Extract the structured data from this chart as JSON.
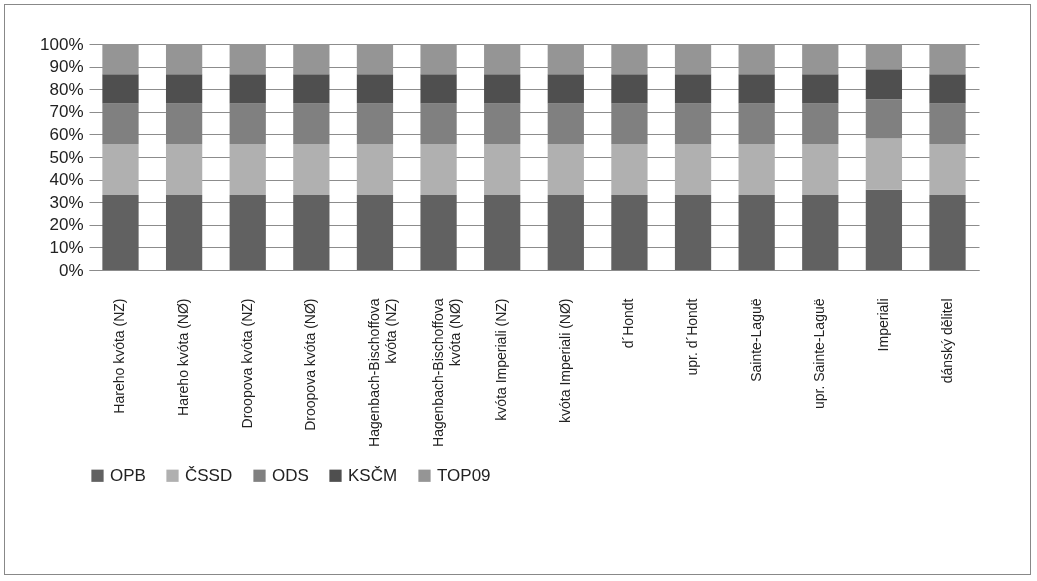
{
  "chart_data": {
    "type": "bar",
    "stacked": true,
    "categories": [
      "Hareho kvóta (NZ)",
      "Hareho kvóta (NØ)",
      "Droopova kvóta (NZ)",
      "Droopova kvóta (NØ)",
      "Hagenbach-Bischoffova kvóta (NZ)",
      "Hagenbach-Bischoffova kvóta (NØ)",
      "kvóta Imperiali (NZ)",
      "kvóta Imperiali (NØ)",
      "d´Hondt",
      "upr. d´Hondt",
      "Sainte-Laguë",
      "upr. Sainte-Laguë",
      "Imperiali",
      "dánský dělitel"
    ],
    "series": [
      {
        "name": "OPB",
        "color": "#616161",
        "values": [
          33.2,
          33.2,
          33.2,
          33.2,
          33.2,
          33.2,
          33.2,
          33.2,
          33.2,
          33.2,
          33.2,
          33.2,
          35.5,
          33.2
        ]
      },
      {
        "name": "ČSSD",
        "color": "#b0b0b0",
        "values": [
          22.6,
          22.6,
          22.6,
          22.6,
          22.6,
          22.6,
          22.6,
          22.6,
          22.6,
          22.6,
          22.6,
          22.6,
          22.7,
          22.6
        ]
      },
      {
        "name": "ODS",
        "color": "#808080",
        "values": [
          17.9,
          17.9,
          17.9,
          17.9,
          17.9,
          17.9,
          17.9,
          17.9,
          17.9,
          17.9,
          17.9,
          17.9,
          17.4,
          17.9
        ]
      },
      {
        "name": "KSČM",
        "color": "#4f4f4f",
        "values": [
          12.9,
          12.9,
          12.9,
          12.9,
          12.9,
          12.9,
          12.9,
          12.9,
          12.9,
          12.9,
          12.9,
          12.9,
          13.2,
          12.9
        ]
      },
      {
        "name": "TOP09",
        "color": "#959595",
        "values": [
          13.4,
          13.4,
          13.4,
          13.4,
          13.4,
          13.4,
          13.4,
          13.4,
          13.4,
          13.4,
          13.4,
          13.4,
          11.2,
          13.4
        ]
      }
    ],
    "ylim": [
      0,
      100
    ],
    "yticks": [
      {
        "value": 0,
        "label": "0%"
      },
      {
        "value": 10,
        "label": "10%"
      },
      {
        "value": 20,
        "label": "20%"
      },
      {
        "value": 30,
        "label": "30%"
      },
      {
        "value": 40,
        "label": "40%"
      },
      {
        "value": 50,
        "label": "50%"
      },
      {
        "value": 60,
        "label": "60%"
      },
      {
        "value": 70,
        "label": "70%"
      },
      {
        "value": 80,
        "label": "80%"
      },
      {
        "value": 90,
        "label": "90%"
      },
      {
        "value": 100,
        "label": "100%"
      }
    ],
    "grid": "y",
    "legend": "bottom"
  }
}
